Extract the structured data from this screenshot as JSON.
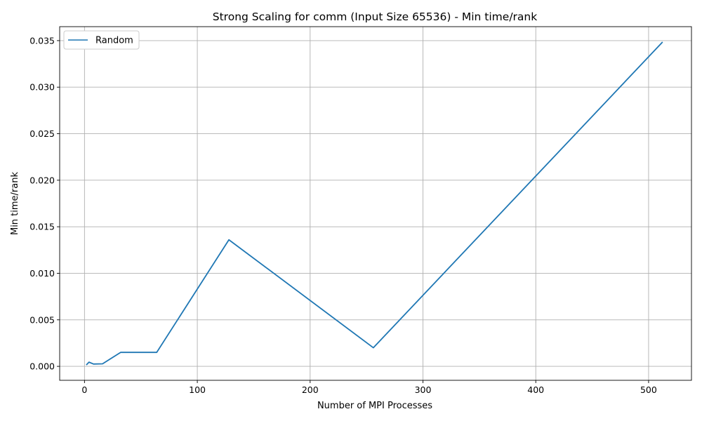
{
  "chart_data": {
    "type": "line",
    "title": "Strong Scaling for comm (Input Size 65536) - Min time/rank",
    "xlabel": "Number of MPI Processes",
    "ylabel": "Min time/rank",
    "xlim": [
      -22,
      538
    ],
    "ylim": [
      -0.0015,
      0.0365
    ],
    "xticks": [
      0,
      100,
      200,
      300,
      400,
      500
    ],
    "xtick_labels": [
      "0",
      "100",
      "200",
      "300",
      "400",
      "500"
    ],
    "yticks": [
      0.0,
      0.005,
      0.01,
      0.015,
      0.02,
      0.025,
      0.03,
      0.035
    ],
    "ytick_labels": [
      "0.000",
      "0.005",
      "0.010",
      "0.015",
      "0.020",
      "0.025",
      "0.030",
      "0.035"
    ],
    "grid": true,
    "legend_position": "top-left",
    "series": [
      {
        "name": "Random",
        "color": "#1f77b4",
        "x": [
          2,
          4,
          8,
          16,
          32,
          64,
          128,
          256,
          512
        ],
        "y": [
          0.0002,
          0.00045,
          0.00025,
          0.00027,
          0.0015,
          0.0015,
          0.0136,
          0.002,
          0.0348
        ]
      }
    ]
  }
}
